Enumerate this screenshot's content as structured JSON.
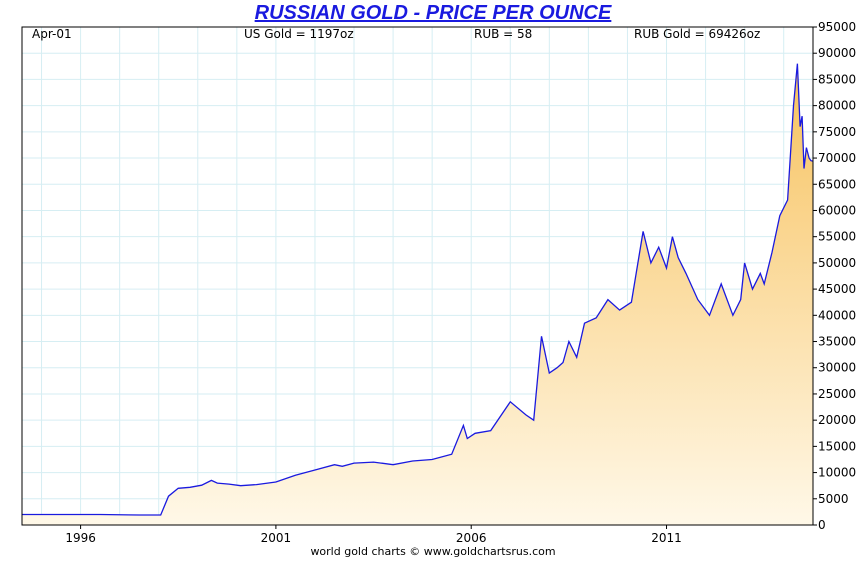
{
  "colors": {
    "title": "#1a1adf",
    "line": "#1a1adf",
    "fill_top": "#f7c25e",
    "fill_bottom": "#fff8e8",
    "grid": "#d6eef3"
  },
  "chart_data": {
    "type": "area",
    "title": "RUSSIAN GOLD - PRICE PER OUNCE",
    "header": {
      "date_label": "Apr-01",
      "us_gold_label": "US Gold = 1197oz",
      "rub_label": "RUB = 58",
      "rub_gold_label": "RUB Gold = 69426oz"
    },
    "credit": "world gold charts © www.goldchartsrus.com",
    "x_ticks": [
      1996,
      2001,
      2006,
      2011
    ],
    "y_ticks": [
      0,
      5000,
      10000,
      15000,
      20000,
      25000,
      30000,
      35000,
      40000,
      45000,
      50000,
      55000,
      60000,
      65000,
      70000,
      75000,
      80000,
      85000,
      90000,
      95000
    ],
    "xlim": [
      1995.0,
      2015.25
    ],
    "ylim": [
      0,
      95000
    ],
    "grid": true,
    "series": [
      {
        "x": [
          1995.0,
          1996.0,
          1997.0,
          1998.0,
          1998.4,
          1998.55,
          1998.75,
          1999.0,
          1999.3,
          1999.6,
          1999.85,
          2000.0,
          2000.3,
          2000.6,
          2001.0,
          2001.5,
          2002.0,
          2002.5,
          2003.0,
          2003.2,
          2003.5,
          2004.0,
          2004.5,
          2005.0,
          2005.5,
          2006.0,
          2006.3,
          2006.4,
          2006.6,
          2007.0,
          2007.5,
          2007.9,
          2008.1,
          2008.3,
          2008.5,
          2008.7,
          2008.85,
          2009.0,
          2009.2,
          2009.4,
          2009.7,
          2010.0,
          2010.3,
          2010.6,
          2010.9,
          2011.1,
          2011.3,
          2011.5,
          2011.65,
          2011.8,
          2012.0,
          2012.3,
          2012.6,
          2012.9,
          2013.2,
          2013.4,
          2013.5,
          2013.7,
          2013.9,
          2014.0,
          2014.2,
          2014.4,
          2014.6,
          2014.75,
          2014.85,
          2014.92,
          2014.97,
          2015.02,
          2015.08,
          2015.15,
          2015.2,
          2015.25
        ],
        "y": [
          2000,
          2000,
          2000,
          1900,
          1900,
          1900,
          5500,
          7000,
          7200,
          7600,
          8500,
          8000,
          7800,
          7500,
          7700,
          8200,
          9500,
          10500,
          11500,
          11200,
          11800,
          12000,
          11500,
          12200,
          12500,
          13500,
          19000,
          16500,
          17500,
          18000,
          23500,
          21000,
          20000,
          36000,
          29000,
          30000,
          31000,
          35000,
          32000,
          38500,
          39500,
          43000,
          41000,
          42500,
          56000,
          50000,
          53000,
          49000,
          55000,
          51000,
          48000,
          43000,
          40000,
          46000,
          40000,
          43000,
          50000,
          45000,
          48000,
          46000,
          52000,
          59000,
          62000,
          80000,
          88000,
          76000,
          78000,
          68000,
          72000,
          70000,
          69500,
          69426
        ]
      }
    ]
  }
}
